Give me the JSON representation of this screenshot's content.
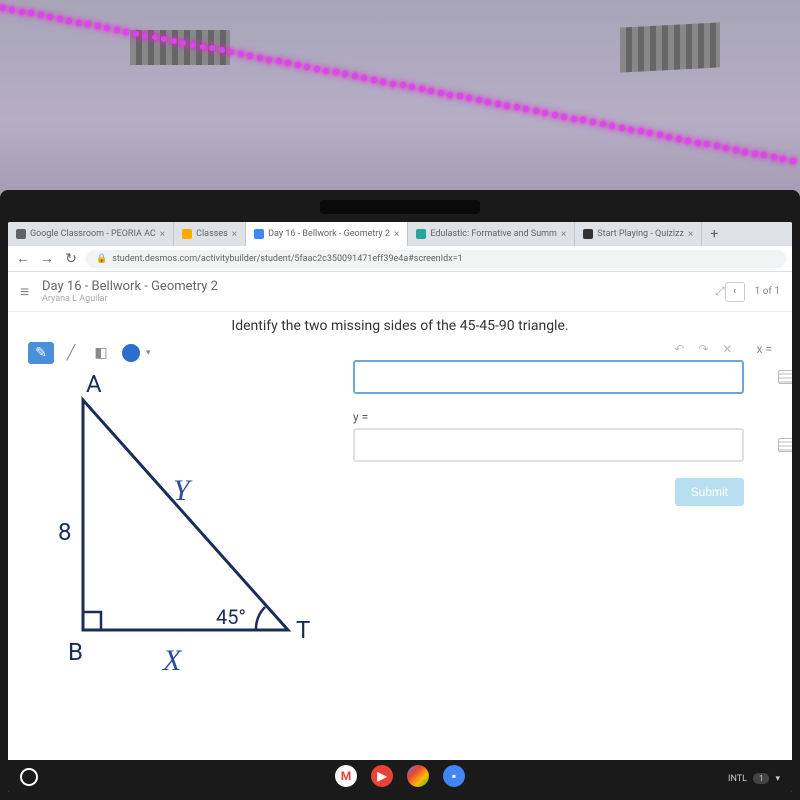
{
  "browser": {
    "tabs": [
      {
        "label": "Google Classroom - PEORIA AC",
        "icon_color": "#5f6368",
        "active": false
      },
      {
        "label": "Classes",
        "icon_color": "#f9ab00",
        "active": false
      },
      {
        "label": "Day 16 - Bellwork - Geometry 2",
        "icon_color": "#4285f4",
        "active": true
      },
      {
        "label": "Edulastic: Formative and Summ",
        "icon_color": "#26a69a",
        "active": false
      },
      {
        "label": "Start Playing - Quizizz",
        "icon_color": "#333",
        "active": false
      }
    ],
    "url": "student.desmos.com/activitybuilder/student/5faac2c350091471eff39e4a#screenIdx=1"
  },
  "page": {
    "title": "Day 16 - Bellwork - Geometry 2",
    "subtitle": "Aryana L Aguilar",
    "pager": "1 of 1",
    "question": "Identify the two missing sides of the 45-45-90 triangle."
  },
  "triangle": {
    "vertex_a": "A",
    "vertex_b": "B",
    "vertex_t": "T",
    "side_ab": "8",
    "angle_t": "45°",
    "label_y": "Y",
    "label_x": "X",
    "stroke_color": "#1a2d5a",
    "handwriting_color": "#2a4a9a",
    "stroke_width": 3
  },
  "inputs": {
    "x_label": "x =",
    "y_label": "y =",
    "x_value": "",
    "y_value": "",
    "submit": "Submit"
  },
  "taskbar": {
    "intl": "INTL",
    "apps": [
      {
        "bg": "#fff",
        "fg": "#ea4335",
        "text": "M"
      },
      {
        "bg": "#ea4335",
        "fg": "#fff",
        "text": "▶"
      },
      {
        "bg": "linear-gradient(135deg,#4285f4,#ea4335,#fbbc05,#34a853)",
        "fg": "#fff",
        "text": ""
      },
      {
        "bg": "#4285f4",
        "fg": "#fff",
        "text": "▪"
      }
    ]
  }
}
